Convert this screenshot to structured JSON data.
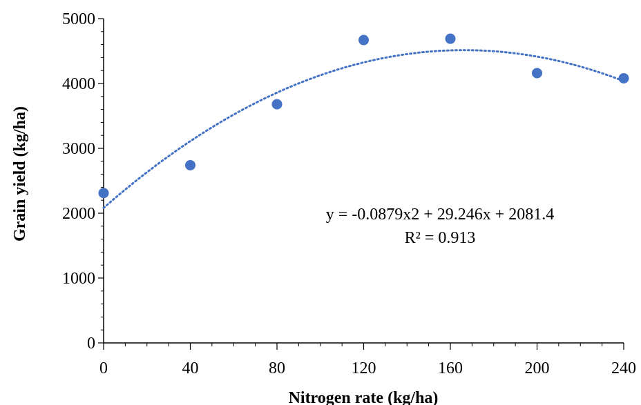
{
  "chart_data": {
    "type": "scatter",
    "xlabel": "Nitrogen rate (kg/ha)",
    "ylabel": "Grain yield (kg/ha)",
    "xlim": [
      0,
      240
    ],
    "ylim": [
      0,
      5000
    ],
    "x_ticks": [
      "0",
      "40",
      "80",
      "120",
      "160",
      "200",
      "240"
    ],
    "y_ticks": [
      "0",
      "1000",
      "2000",
      "3000",
      "4000",
      "5000"
    ],
    "x_tick_values": [
      0,
      40,
      80,
      120,
      160,
      200,
      240
    ],
    "y_tick_values": [
      0,
      1000,
      2000,
      3000,
      4000,
      5000
    ],
    "points": [
      {
        "x": 0,
        "y": 2310
      },
      {
        "x": 40,
        "y": 2740
      },
      {
        "x": 80,
        "y": 3680
      },
      {
        "x": 120,
        "y": 4670
      },
      {
        "x": 160,
        "y": 4690
      },
      {
        "x": 200,
        "y": 4160
      },
      {
        "x": 240,
        "y": 4080
      }
    ],
    "trendline": {
      "type": "polynomial",
      "coefficients": {
        "a": -0.0879,
        "b": 29.246,
        "c": 2081.4
      },
      "equation": "y = -0.0879x2 + 29.246x + 2081.4",
      "r2": "R² = 0.913"
    },
    "grid": false,
    "legend": "none",
    "colors": {
      "marker": "#4472C4",
      "trendline": "#4472C4",
      "axis": "#000000"
    }
  }
}
